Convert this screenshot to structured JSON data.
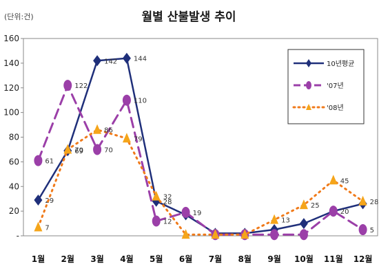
{
  "chart_data": {
    "type": "line",
    "title": "월별 산불발생 추이",
    "unit_label": "(단위:건)",
    "categories": [
      "1월",
      "2월",
      "3월",
      "4월",
      "5월",
      "6월",
      "7월",
      "8월",
      "9월",
      "10월",
      "11월",
      "12월"
    ],
    "ylim": [
      0,
      160
    ],
    "yticks": [
      "160",
      "140",
      "120",
      "100",
      "80",
      "60",
      "40",
      "20",
      "-"
    ],
    "grid": false,
    "legend_position": "top-right",
    "series": [
      {
        "name": "10년평균",
        "color": "#1f2f7a",
        "style": "solid",
        "marker": "diamond",
        "values": [
          29,
          69,
          142,
          144,
          28,
          17,
          2,
          2,
          5,
          10,
          20,
          26
        ],
        "labels": [
          "29",
          "69",
          "142",
          "144",
          "28",
          "",
          "",
          "",
          "",
          "",
          "",
          ""
        ]
      },
      {
        "name": "'07년",
        "color": "#9b3fa8",
        "style": "dash",
        "marker": "circle",
        "values": [
          61,
          122,
          70,
          110,
          12,
          19,
          1,
          1,
          1,
          1,
          20,
          5
        ],
        "labels": [
          "61",
          "122",
          "70",
          "110",
          "12",
          "19",
          "",
          "",
          "",
          "",
          "20",
          "5"
        ]
      },
      {
        "name": "'08년",
        "color": "#f07a1a",
        "style": "dot",
        "marker": "triangle",
        "values": [
          7,
          70,
          86,
          79,
          32,
          1,
          1,
          1,
          13,
          25,
          45,
          28
        ],
        "labels": [
          "7",
          "70",
          "86",
          "79",
          "32",
          "",
          "",
          "",
          "13",
          "25",
          "45",
          "28"
        ]
      }
    ]
  }
}
